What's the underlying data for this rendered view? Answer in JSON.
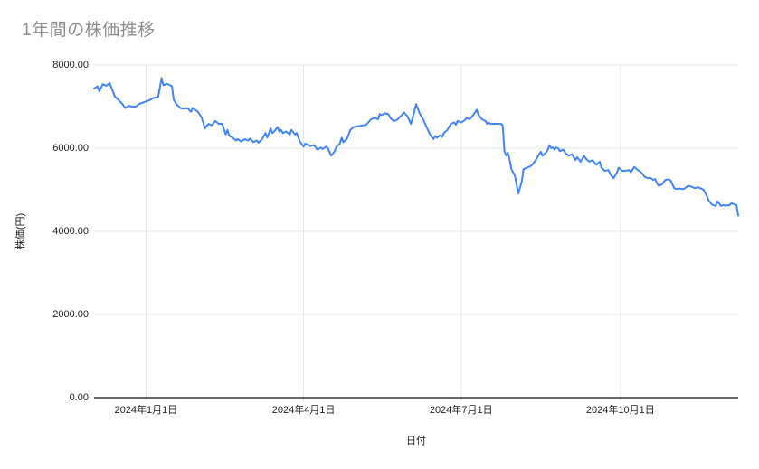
{
  "chart_data": {
    "type": "line",
    "title": "1年間の株価推移",
    "xlabel": "日付",
    "ylabel": "株価(円)",
    "ylim": [
      0,
      8000
    ],
    "grid": "both",
    "legend": "none",
    "line_color": "#4285f4",
    "gridline_color": "#e4e4e4",
    "axis_line_color": "#333333",
    "title_color": "#8e8e8e",
    "label_color": "#1f1f1f",
    "y_ticks": [
      {
        "value": 8000,
        "label": "8000.00"
      },
      {
        "value": 6000,
        "label": "6000.00"
      },
      {
        "value": 4000,
        "label": "4000.00"
      },
      {
        "value": 2000,
        "label": "2000.00"
      },
      {
        "value": 0,
        "label": "0.00"
      }
    ],
    "x_domain_days": [
      0,
      372
    ],
    "x_ticks": [
      {
        "day": 30,
        "label": "2024年1月1日"
      },
      {
        "day": 121,
        "label": "2024年4月1日"
      },
      {
        "day": 212,
        "label": "2024年7月1日"
      },
      {
        "day": 304,
        "label": "2024年10月1日"
      }
    ],
    "series": [
      {
        "name": "株価",
        "points": [
          [
            0,
            7430
          ],
          [
            2,
            7490
          ],
          [
            3,
            7370
          ],
          [
            5,
            7540
          ],
          [
            7,
            7500
          ],
          [
            9,
            7565
          ],
          [
            11,
            7350
          ],
          [
            12,
            7240
          ],
          [
            14,
            7165
          ],
          [
            16,
            7080
          ],
          [
            18,
            6965
          ],
          [
            20,
            7020
          ],
          [
            22,
            7000
          ],
          [
            24,
            7000
          ],
          [
            26,
            7060
          ],
          [
            29,
            7110
          ],
          [
            32,
            7155
          ],
          [
            34,
            7205
          ],
          [
            37,
            7230
          ],
          [
            39,
            7690
          ],
          [
            40,
            7515
          ],
          [
            42,
            7545
          ],
          [
            43,
            7530
          ],
          [
            45,
            7490
          ],
          [
            46,
            7165
          ],
          [
            48,
            7035
          ],
          [
            50,
            6965
          ],
          [
            51,
            6950
          ],
          [
            54,
            6960
          ],
          [
            56,
            6875
          ],
          [
            57,
            6970
          ],
          [
            60,
            6875
          ],
          [
            62,
            6745
          ],
          [
            63,
            6620
          ],
          [
            64,
            6475
          ],
          [
            66,
            6585
          ],
          [
            68,
            6550
          ],
          [
            70,
            6655
          ],
          [
            72,
            6585
          ],
          [
            74,
            6590
          ],
          [
            76,
            6330
          ],
          [
            77,
            6440
          ],
          [
            78,
            6305
          ],
          [
            80,
            6255
          ],
          [
            82,
            6185
          ],
          [
            83,
            6220
          ],
          [
            85,
            6160
          ],
          [
            87,
            6220
          ],
          [
            89,
            6185
          ],
          [
            90,
            6235
          ],
          [
            92,
            6145
          ],
          [
            94,
            6185
          ],
          [
            95,
            6135
          ],
          [
            97,
            6220
          ],
          [
            99,
            6365
          ],
          [
            100,
            6255
          ],
          [
            102,
            6475
          ],
          [
            103,
            6365
          ],
          [
            104,
            6400
          ],
          [
            106,
            6510
          ],
          [
            107,
            6400
          ],
          [
            108,
            6440
          ],
          [
            109,
            6365
          ],
          [
            111,
            6400
          ],
          [
            113,
            6330
          ],
          [
            114,
            6440
          ],
          [
            116,
            6330
          ],
          [
            117,
            6365
          ],
          [
            119,
            6145
          ],
          [
            121,
            6040
          ],
          [
            122,
            6110
          ],
          [
            124,
            6075
          ],
          [
            125,
            6050
          ],
          [
            127,
            6075
          ],
          [
            129,
            5965
          ],
          [
            131,
            6015
          ],
          [
            132,
            5980
          ],
          [
            134,
            6040
          ],
          [
            135,
            6000
          ],
          [
            137,
            5820
          ],
          [
            139,
            5930
          ],
          [
            140,
            6040
          ],
          [
            142,
            6110
          ],
          [
            143,
            6255
          ],
          [
            144,
            6145
          ],
          [
            146,
            6220
          ],
          [
            148,
            6440
          ],
          [
            150,
            6510
          ],
          [
            152,
            6525
          ],
          [
            154,
            6540
          ],
          [
            155,
            6550
          ],
          [
            157,
            6560
          ],
          [
            158,
            6600
          ],
          [
            160,
            6695
          ],
          [
            162,
            6730
          ],
          [
            164,
            6695
          ],
          [
            165,
            6820
          ],
          [
            166,
            6795
          ],
          [
            168,
            6840
          ],
          [
            170,
            6820
          ],
          [
            171,
            6730
          ],
          [
            173,
            6655
          ],
          [
            175,
            6680
          ],
          [
            177,
            6765
          ],
          [
            179,
            6860
          ],
          [
            181,
            6765
          ],
          [
            182,
            6680
          ],
          [
            183,
            6585
          ],
          [
            184,
            6730
          ],
          [
            186,
            7060
          ],
          [
            188,
            6840
          ],
          [
            190,
            6695
          ],
          [
            192,
            6510
          ],
          [
            194,
            6330
          ],
          [
            196,
            6220
          ],
          [
            197,
            6290
          ],
          [
            198,
            6255
          ],
          [
            200,
            6310
          ],
          [
            201,
            6270
          ],
          [
            202,
            6365
          ],
          [
            204,
            6440
          ],
          [
            206,
            6585
          ],
          [
            208,
            6620
          ],
          [
            209,
            6565
          ],
          [
            210,
            6655
          ],
          [
            212,
            6620
          ],
          [
            214,
            6670
          ],
          [
            215,
            6730
          ],
          [
            217,
            6695
          ],
          [
            219,
            6800
          ],
          [
            221,
            6925
          ],
          [
            222,
            6800
          ],
          [
            224,
            6695
          ],
          [
            226,
            6655
          ],
          [
            227,
            6585
          ],
          [
            228,
            6620
          ],
          [
            229,
            6585
          ],
          [
            231,
            6590
          ],
          [
            233,
            6585
          ],
          [
            235,
            6590
          ],
          [
            236,
            6545
          ],
          [
            237,
            5930
          ],
          [
            238,
            5820
          ],
          [
            239,
            5895
          ],
          [
            240,
            5710
          ],
          [
            241,
            5495
          ],
          [
            243,
            5345
          ],
          [
            245,
            4910
          ],
          [
            247,
            5200
          ],
          [
            248,
            5495
          ],
          [
            250,
            5530
          ],
          [
            252,
            5565
          ],
          [
            253,
            5600
          ],
          [
            255,
            5710
          ],
          [
            257,
            5855
          ],
          [
            258,
            5915
          ],
          [
            259,
            5820
          ],
          [
            261,
            5895
          ],
          [
            262,
            5965
          ],
          [
            263,
            6075
          ],
          [
            264,
            6000
          ],
          [
            265,
            6020
          ],
          [
            266,
            5965
          ],
          [
            267,
            6020
          ],
          [
            268,
            6000
          ],
          [
            269,
            5930
          ],
          [
            271,
            5965
          ],
          [
            272,
            5895
          ],
          [
            274,
            5820
          ],
          [
            276,
            5855
          ],
          [
            278,
            5710
          ],
          [
            279,
            5785
          ],
          [
            281,
            5675
          ],
          [
            283,
            5820
          ],
          [
            284,
            5750
          ],
          [
            286,
            5675
          ],
          [
            288,
            5710
          ],
          [
            290,
            5600
          ],
          [
            292,
            5675
          ],
          [
            293,
            5530
          ],
          [
            295,
            5455
          ],
          [
            297,
            5475
          ],
          [
            298,
            5385
          ],
          [
            300,
            5275
          ],
          [
            302,
            5420
          ],
          [
            303,
            5530
          ],
          [
            305,
            5455
          ],
          [
            307,
            5460
          ],
          [
            309,
            5475
          ],
          [
            310,
            5420
          ],
          [
            312,
            5550
          ],
          [
            314,
            5475
          ],
          [
            316,
            5420
          ],
          [
            318,
            5310
          ],
          [
            320,
            5275
          ],
          [
            321,
            5290
          ],
          [
            323,
            5240
          ],
          [
            324,
            5255
          ],
          [
            326,
            5095
          ],
          [
            328,
            5130
          ],
          [
            330,
            5240
          ],
          [
            332,
            5250
          ],
          [
            333,
            5220
          ],
          [
            335,
            5040
          ],
          [
            336,
            5020
          ],
          [
            338,
            5030
          ],
          [
            340,
            5020
          ],
          [
            341,
            5030
          ],
          [
            343,
            5095
          ],
          [
            345,
            5075
          ],
          [
            347,
            5040
          ],
          [
            349,
            5060
          ],
          [
            350,
            5040
          ],
          [
            352,
            5000
          ],
          [
            354,
            4845
          ],
          [
            355,
            4735
          ],
          [
            357,
            4640
          ],
          [
            359,
            4610
          ],
          [
            360,
            4725
          ],
          [
            362,
            4610
          ],
          [
            363,
            4630
          ],
          [
            365,
            4620
          ],
          [
            367,
            4630
          ],
          [
            368,
            4675
          ],
          [
            370,
            4650
          ],
          [
            371,
            4630
          ],
          [
            372,
            4380
          ]
        ]
      }
    ]
  }
}
